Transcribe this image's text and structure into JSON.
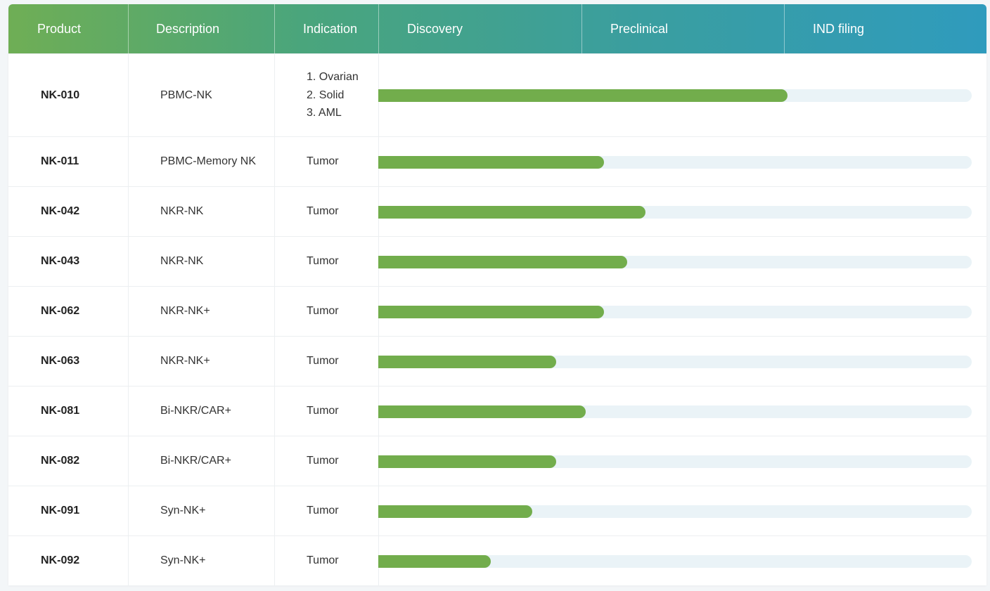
{
  "columns": {
    "product": "Product",
    "description": "Description",
    "indication": "Indication",
    "stages": [
      "Discovery",
      "Preclinical",
      "IND filing"
    ]
  },
  "colors": {
    "progress_fill": "#72ad4c",
    "progress_track": "#eaf3f7",
    "header_gradient_start": "#6fae55",
    "header_gradient_end": "#2f9bbd"
  },
  "rows": [
    {
      "product": "NK-010",
      "description": "PBMC-NK",
      "indication": [
        "1. Ovarian",
        "2. Solid",
        "3. AML"
      ],
      "progress": 0.69
    },
    {
      "product": "NK-011",
      "description": "PBMC-Memory NK",
      "indication": [
        "Tumor"
      ],
      "progress": 0.38
    },
    {
      "product": "NK-042",
      "description": "NKR-NK",
      "indication": [
        "Tumor"
      ],
      "progress": 0.45
    },
    {
      "product": "NK-043",
      "description": "NKR-NK",
      "indication": [
        "Tumor"
      ],
      "progress": 0.42
    },
    {
      "product": "NK-062",
      "description": "NKR-NK+",
      "indication": [
        "Tumor"
      ],
      "progress": 0.38
    },
    {
      "product": "NK-063",
      "description": "NKR-NK+",
      "indication": [
        "Tumor"
      ],
      "progress": 0.3
    },
    {
      "product": "NK-081",
      "description": "Bi-NKR/CAR+",
      "indication": [
        "Tumor"
      ],
      "progress": 0.35
    },
    {
      "product": "NK-082",
      "description": "Bi-NKR/CAR+",
      "indication": [
        "Tumor"
      ],
      "progress": 0.3
    },
    {
      "product": "NK-091",
      "description": "Syn-NK+",
      "indication": [
        "Tumor"
      ],
      "progress": 0.26
    },
    {
      "product": "NK-092",
      "description": "Syn-NK+",
      "indication": [
        "Tumor"
      ],
      "progress": 0.19
    }
  ],
  "chart_data": {
    "type": "bar",
    "orientation": "horizontal",
    "categories": [
      "NK-010",
      "NK-011",
      "NK-042",
      "NK-043",
      "NK-062",
      "NK-063",
      "NK-081",
      "NK-082",
      "NK-091",
      "NK-092"
    ],
    "x_stages": [
      "Discovery",
      "Preclinical",
      "IND filing"
    ],
    "values": [
      0.69,
      0.38,
      0.45,
      0.42,
      0.38,
      0.3,
      0.35,
      0.3,
      0.26,
      0.19
    ],
    "xlim": [
      0,
      1
    ],
    "grid": false
  }
}
